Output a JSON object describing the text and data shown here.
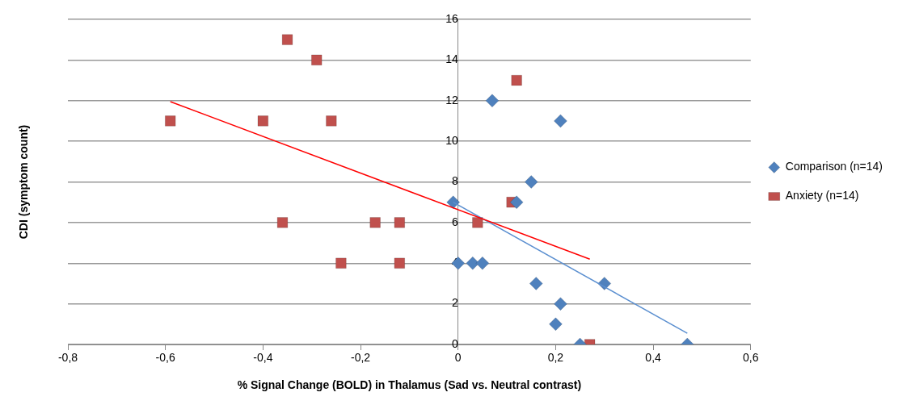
{
  "chart_data": {
    "type": "scatter",
    "xlabel": "% Signal Change (BOLD) in Thalamus (Sad vs. Neutral contrast)",
    "ylabel": "CDI (symptom count)",
    "xlim": [
      -0.8,
      0.6
    ],
    "xticks": [
      {
        "value": -0.8,
        "label": "-0,8"
      },
      {
        "value": -0.6,
        "label": "-0,6"
      },
      {
        "value": -0.4,
        "label": "-0,4"
      },
      {
        "value": -0.2,
        "label": "-0,2"
      },
      0,
      {
        "value": 0.2,
        "label": "0,2"
      },
      {
        "value": 0.4,
        "label": "0,4"
      },
      {
        "value": 0.6,
        "label": "0,6"
      }
    ],
    "ylim": [
      0,
      16
    ],
    "yticks": [
      0,
      2,
      4,
      6,
      8,
      10,
      12,
      14,
      16
    ],
    "grid": "y",
    "legend": "right",
    "series": [
      {
        "name": "Comparison (n=14)",
        "color": "#4f81bd",
        "marker": "diamond",
        "x": [
          -0.01,
          0,
          0.03,
          0.05,
          0.07,
          0.21,
          0.15,
          0.12,
          0.16,
          0.21,
          0.2,
          0.25,
          0.3,
          0.47
        ],
        "values": [
          7,
          4,
          4,
          4,
          12,
          11,
          8,
          7,
          3,
          2,
          1,
          0,
          3,
          0
        ]
      },
      {
        "name": "Anxiety (n=14)",
        "color": "#c0504d",
        "marker": "square",
        "x": [
          0.12,
          0.11,
          0.04,
          0.27,
          -0.35,
          -0.29,
          -0.59,
          -0.4,
          -0.26,
          -0.36,
          -0.17,
          -0.12,
          -0.24,
          -0.12
        ],
        "values": [
          13,
          7,
          6,
          0,
          15,
          14,
          11,
          11,
          11,
          6,
          6,
          6,
          4,
          4
        ]
      },
      {
        "type": "line",
        "color": "#ff0000",
        "marker": "none",
        "x": [
          -0.59,
          0.27
        ],
        "values": [
          11.95,
          4.2
        ]
      },
      {
        "type": "line",
        "color": "#5b8fd0",
        "marker": "none",
        "x": [
          -0.01,
          0.47
        ],
        "values": [
          7.0,
          0.55
        ]
      }
    ]
  }
}
